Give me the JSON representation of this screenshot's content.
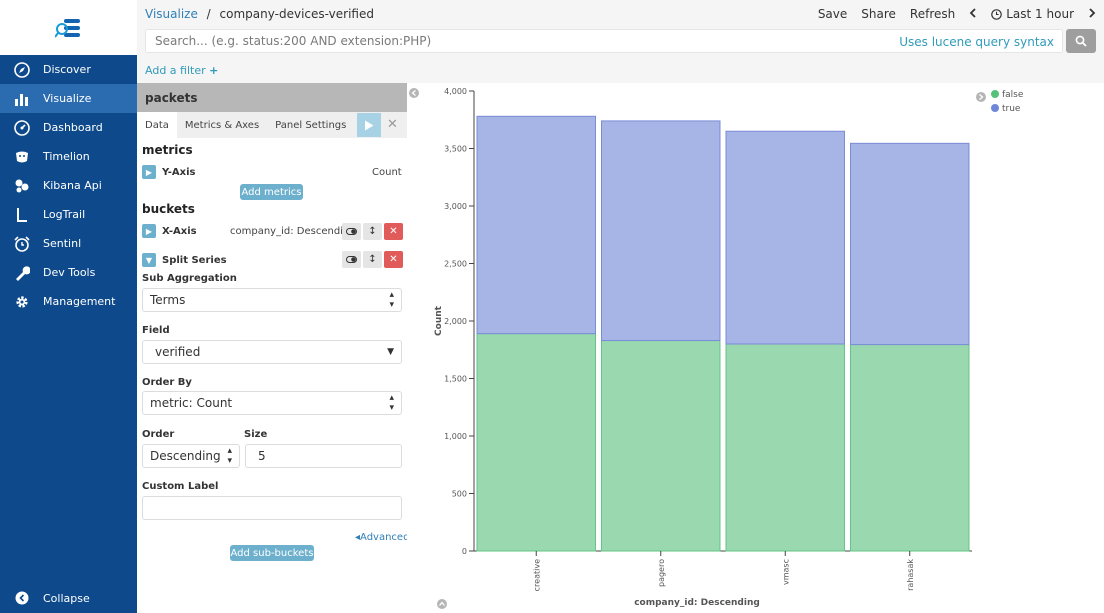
{
  "sidebar": {
    "items": [
      {
        "label": "Discover",
        "icon": "compass-icon"
      },
      {
        "label": "Visualize",
        "icon": "bar-chart-icon"
      },
      {
        "label": "Dashboard",
        "icon": "dashboard-icon"
      },
      {
        "label": "Timelion",
        "icon": "timelion-icon"
      },
      {
        "label": "Kibana Api",
        "icon": "api-icon"
      },
      {
        "label": "LogTrail",
        "icon": "logtrail-icon"
      },
      {
        "label": "Sentinl",
        "icon": "alarm-icon"
      },
      {
        "label": "Dev Tools",
        "icon": "wrench-icon"
      },
      {
        "label": "Management",
        "icon": "gear-icon"
      }
    ],
    "active_index": 1,
    "collapse_label": "Collapse"
  },
  "header": {
    "crumb_root": "Visualize",
    "crumb_sep": "/",
    "crumb_current": "company-devices-verified",
    "save": "Save",
    "share": "Share",
    "refresh": "Refresh",
    "time": "Last 1 hour"
  },
  "search": {
    "placeholder": "Search... (e.g. status:200 AND extension:PHP)",
    "lucene": "Uses lucene query syntax"
  },
  "filter": {
    "add_label": "Add a filter"
  },
  "editor": {
    "title": "packets",
    "tabs": [
      "Data",
      "Metrics & Axes",
      "Panel Settings"
    ],
    "metrics_heading": "metrics",
    "y_axis_label": "Y-Axis",
    "y_axis_value": "Count",
    "add_metrics": "Add metrics",
    "buckets_heading": "buckets",
    "x_axis_label": "X-Axis",
    "x_axis_value": "company_id: Descending",
    "split_label": "Split Series",
    "sub_agg_label": "Sub Aggregation",
    "sub_agg_value": "Terms",
    "field_label": "Field",
    "field_value": "verified",
    "order_by_label": "Order By",
    "order_by_value": "metric: Count",
    "order_label": "Order",
    "order_value": "Descending",
    "size_label": "Size",
    "size_value": "5",
    "custom_label": "Custom Label",
    "custom_value": "",
    "advanced": "Advanced",
    "add_sub_buckets": "Add sub-buckets"
  },
  "chart_data": {
    "type": "bar",
    "stacked": true,
    "categories": [
      "creative",
      "pagero",
      "vmasc",
      "rahasak"
    ],
    "series": [
      {
        "name": "false",
        "color": "#9ad8b0",
        "values": [
          1890,
          1830,
          1800,
          1795
        ]
      },
      {
        "name": "true",
        "color": "#a6b4e6",
        "values": [
          1890,
          1910,
          1850,
          1750
        ]
      }
    ],
    "ylabel": "Count",
    "xlabel": "company_id: Descending",
    "ylim": [
      0,
      4000
    ],
    "yticks": [
      "0",
      "500",
      "1,000",
      "1,500",
      "2,000",
      "2,500",
      "3,000",
      "3,500",
      "4,000"
    ],
    "legend_position": "top-right",
    "grid": false
  }
}
